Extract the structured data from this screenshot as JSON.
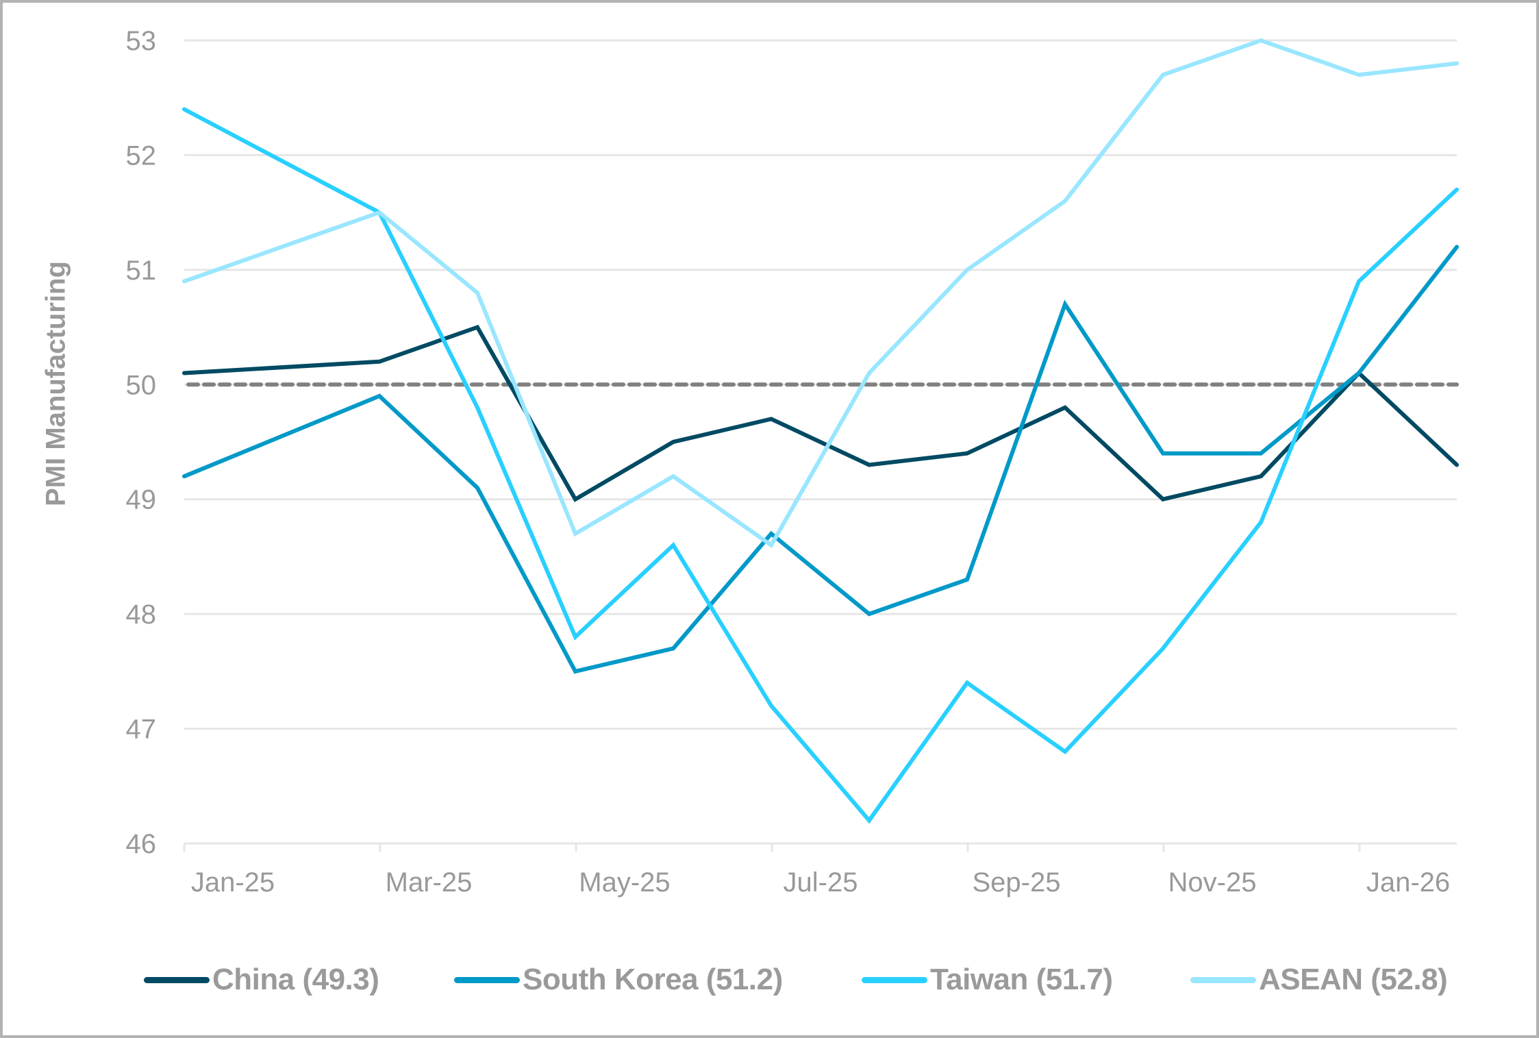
{
  "chart_data": {
    "type": "line",
    "title": "",
    "xlabel": "",
    "ylabel": "PMI Manufacturing",
    "ylim": [
      46,
      53
    ],
    "yticks": [
      46,
      47,
      48,
      49,
      50,
      51,
      52,
      53
    ],
    "xtick_labels": [
      "Jan-25",
      "Mar-25",
      "May-25",
      "Jul-25",
      "Sep-25",
      "Nov-25",
      "Jan-26"
    ],
    "categories": [
      "Jan-25",
      "Feb-25",
      "Mar-25",
      "Apr-25",
      "May-25",
      "Jun-25",
      "Jul-25",
      "Aug-25",
      "Sep-25",
      "Oct-25",
      "Nov-25",
      "Dec-25",
      "Jan-26"
    ],
    "grid": true,
    "reference_line": {
      "value": 50,
      "style": "dashed",
      "color": "#808080"
    },
    "legend_position": "bottom",
    "series": [
      {
        "name": "China (49.3)",
        "color": "#004a63",
        "values": [
          50.1,
          50.2,
          50.5,
          49.0,
          49.5,
          49.7,
          49.3,
          49.4,
          49.8,
          49.0,
          49.2,
          50.1,
          49.3
        ]
      },
      {
        "name": "South Korea (51.2)",
        "color": "#0099c8",
        "values": [
          49.2,
          49.9,
          49.1,
          47.5,
          47.7,
          48.7,
          48.0,
          48.3,
          50.7,
          49.4,
          49.4,
          50.1,
          51.2
        ]
      },
      {
        "name": "Taiwan (51.7)",
        "color": "#29d0ff",
        "values": [
          52.4,
          51.5,
          49.8,
          47.8,
          48.6,
          47.2,
          46.2,
          47.4,
          46.8,
          47.7,
          48.8,
          50.9,
          51.7
        ]
      },
      {
        "name": "ASEAN (52.8)",
        "color": "#99e6ff",
        "values": [
          50.9,
          51.5,
          50.8,
          48.7,
          49.2,
          48.6,
          50.1,
          51.0,
          51.6,
          52.7,
          53.0,
          52.7,
          52.8
        ]
      }
    ]
  },
  "axis": {
    "ylabel": "PMI Manufacturing"
  },
  "legend": [
    {
      "label": "China (49.3)",
      "color": "#004a63"
    },
    {
      "label": "South Korea (51.2)",
      "color": "#0099c8"
    },
    {
      "label": "Taiwan (51.7)",
      "color": "#29d0ff"
    },
    {
      "label": "ASEAN (52.8)",
      "color": "#99e6ff"
    }
  ]
}
